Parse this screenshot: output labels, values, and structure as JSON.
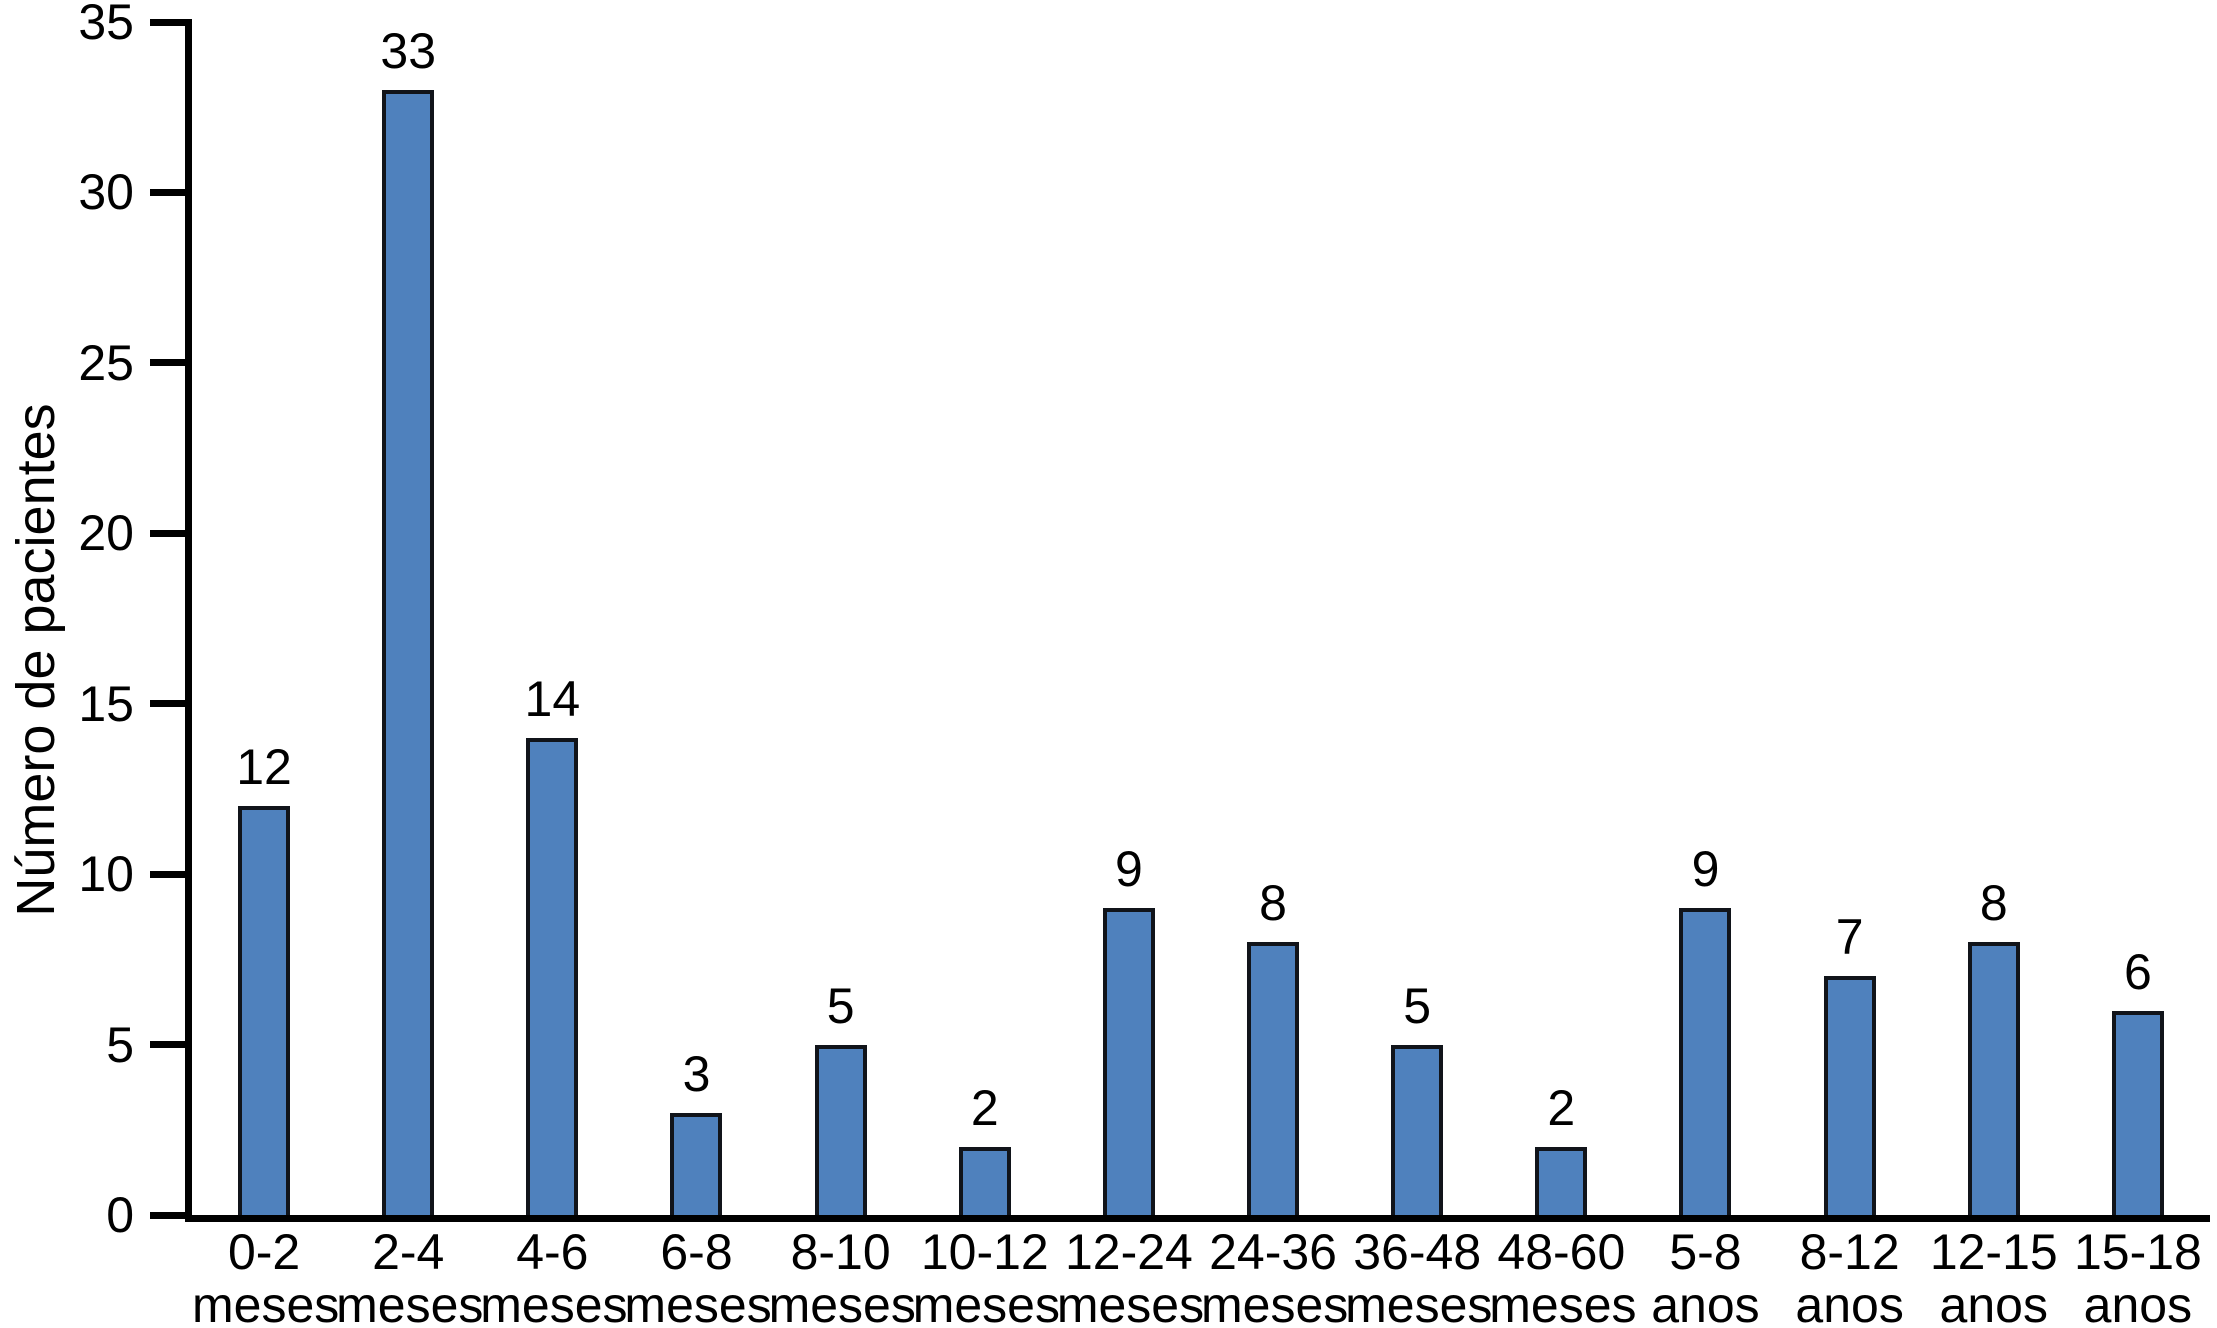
{
  "chart_data": {
    "type": "bar",
    "ylabel": "Número de pacientes",
    "ylim": [
      0,
      35
    ],
    "yticks": [
      0,
      5,
      10,
      15,
      20,
      25,
      30,
      35
    ],
    "grid": false,
    "legend_position": "none",
    "bar_fill_color": "#4F81BD",
    "bar_border_color": "#11141a",
    "axis_color": "#000000",
    "categories": [
      "0-2\nmeses",
      "2-4\nmeses",
      "4-6\nmeses",
      "6-8\nmeses",
      "8-10\nmeses",
      "10-12\nmeses",
      "12-24\nmeses",
      "24-36\nmeses",
      "36-48\nmeses",
      "48-60\nmeses",
      "5-8\nanos",
      "8-12\nanos",
      "12-15\nanos",
      "15-18\nanos"
    ],
    "values": [
      12,
      33,
      14,
      3,
      5,
      2,
      9,
      8,
      5,
      2,
      9,
      7,
      8,
      6
    ]
  }
}
